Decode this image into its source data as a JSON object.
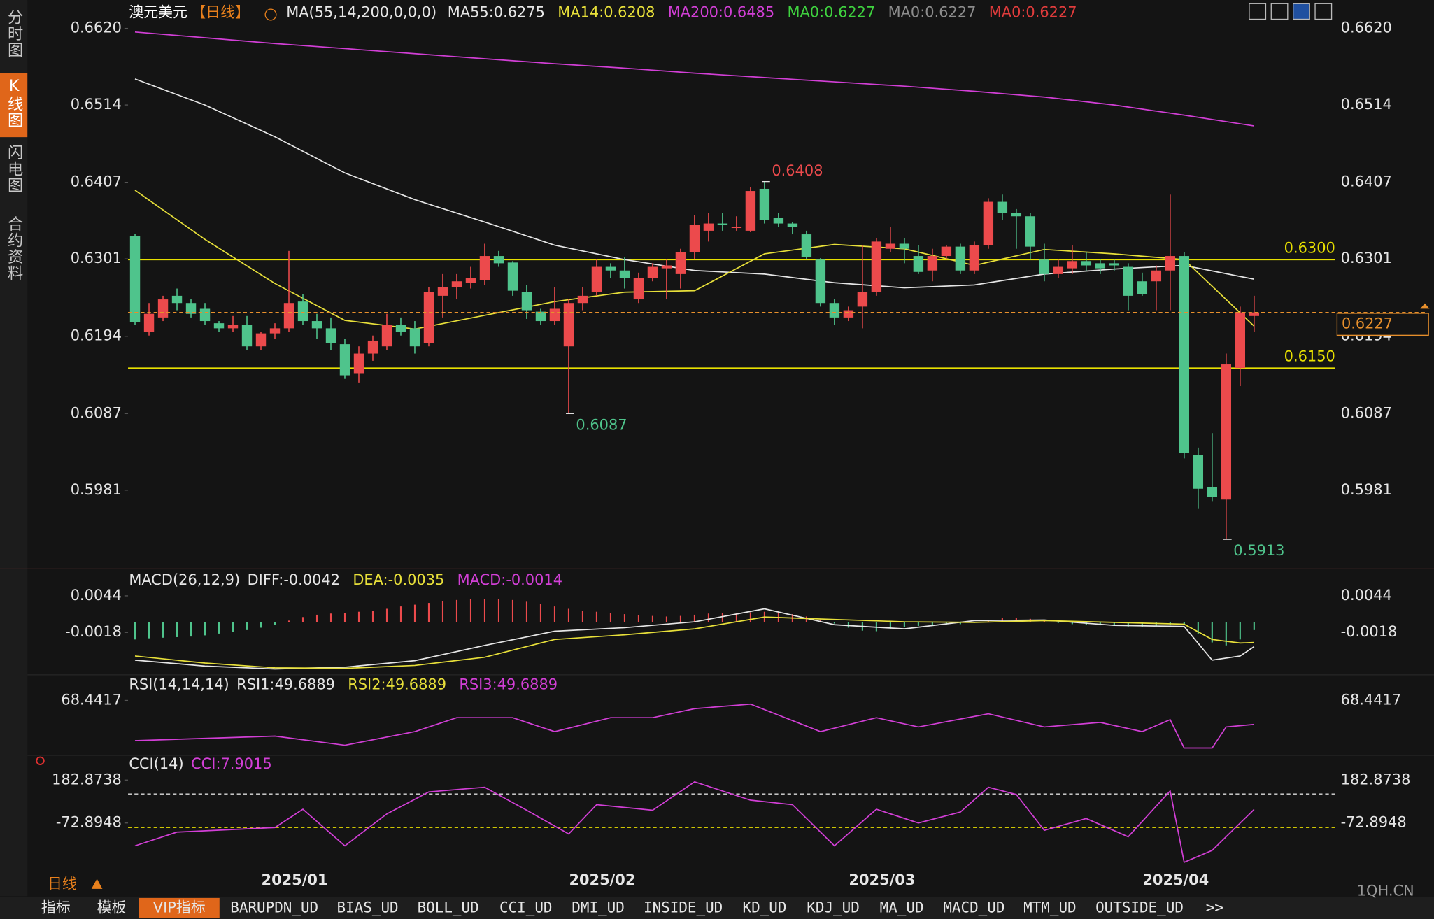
{
  "ui": {
    "sidebar": [
      "分时图",
      "K线图",
      "闪电图",
      "合约资料"
    ],
    "period": "日线",
    "bottom_tabs": [
      "指标",
      "模板",
      "VIP指标",
      "BARUPDN_UD",
      "BIAS_UD",
      "BOLL_UD",
      "CCI_UD",
      "DMI_UD",
      "INSIDE_UD",
      "KD_UD",
      "KDJ_UD",
      "MA_UD",
      "MACD_UD",
      "MTM_UD",
      "OUTSIDE_UD",
      ">>"
    ],
    "watermark": "1QH.CN"
  },
  "chart_data": [
    {
      "type": "candlestick",
      "title": "澳元美元",
      "period": "【日线】",
      "indicator": "MA(55,14,200,0,0,0)",
      "up_color": "#ec4a4c",
      "down_color": "#4fc48c",
      "xlim": [
        -0.5,
        85.8
      ],
      "xticks": [
        {
          "value": 11.4,
          "label": "2025/01"
        },
        {
          "value": 33.4,
          "label": "2025/02"
        },
        {
          "value": 53.4,
          "label": "2025/03"
        },
        {
          "value": 74.4,
          "label": "2025/04"
        }
      ],
      "ylim": [
        0.5865,
        0.666
      ],
      "yticks": [
        {
          "value": 0.662,
          "label": "0.6620"
        },
        0.6514,
        0.6407,
        0.6301,
        0.6194,
        0.6087,
        0.5981
      ],
      "open": [
        0.6333,
        0.62,
        0.622,
        0.625,
        0.624,
        0.6232,
        0.6212,
        0.6205,
        0.621,
        0.618,
        0.6198,
        0.6205,
        0.6242,
        0.6215,
        0.6205,
        0.6183,
        0.6142,
        0.617,
        0.618,
        0.621,
        0.6205,
        0.6185,
        0.625,
        0.6262,
        0.6268,
        0.6272,
        0.6305,
        0.6296,
        0.6255,
        0.6228,
        0.6215,
        0.618,
        0.624,
        0.6255,
        0.629,
        0.6285,
        0.6245,
        0.6275,
        0.6288,
        0.628,
        0.631,
        0.634,
        0.635,
        0.6345,
        0.634,
        0.6398,
        0.6358,
        0.635,
        0.6335,
        0.63,
        0.624,
        0.622,
        0.6235,
        0.6255,
        0.6315,
        0.6322,
        0.6305,
        0.6285,
        0.6305,
        0.6318,
        0.6285,
        0.632,
        0.638,
        0.6365,
        0.636,
        0.63,
        0.628,
        0.6288,
        0.6298,
        0.6295,
        0.6295,
        0.629,
        0.627,
        0.627,
        0.6285,
        0.6305,
        0.603,
        0.5985,
        0.5968,
        0.615,
        0.6222
      ],
      "high": [
        0.6335,
        0.624,
        0.625,
        0.626,
        0.6245,
        0.624,
        0.6215,
        0.6222,
        0.6222,
        0.62,
        0.6212,
        0.6312,
        0.6252,
        0.6225,
        0.622,
        0.619,
        0.618,
        0.6195,
        0.6225,
        0.622,
        0.6215,
        0.6262,
        0.628,
        0.628,
        0.629,
        0.6322,
        0.6312,
        0.6298,
        0.6265,
        0.6232,
        0.6262,
        0.6245,
        0.6262,
        0.63,
        0.6295,
        0.6303,
        0.6282,
        0.6295,
        0.63,
        0.6315,
        0.6362,
        0.6365,
        0.6365,
        0.636,
        0.64,
        0.6408,
        0.6365,
        0.6352,
        0.634,
        0.6302,
        0.6245,
        0.6235,
        0.632,
        0.633,
        0.6345,
        0.633,
        0.632,
        0.6315,
        0.632,
        0.6322,
        0.6325,
        0.6385,
        0.639,
        0.637,
        0.6365,
        0.6322,
        0.63,
        0.632,
        0.631,
        0.63,
        0.63,
        0.6295,
        0.6282,
        0.6292,
        0.639,
        0.631,
        0.604,
        0.606,
        0.617,
        0.6235,
        0.625
      ],
      "low": [
        0.621,
        0.6195,
        0.6215,
        0.623,
        0.622,
        0.621,
        0.62,
        0.62,
        0.6175,
        0.6175,
        0.619,
        0.62,
        0.621,
        0.619,
        0.6175,
        0.6135,
        0.613,
        0.616,
        0.6175,
        0.6195,
        0.617,
        0.618,
        0.622,
        0.6245,
        0.626,
        0.6265,
        0.629,
        0.625,
        0.6218,
        0.621,
        0.621,
        0.6087,
        0.623,
        0.625,
        0.6275,
        0.626,
        0.624,
        0.627,
        0.6245,
        0.626,
        0.63,
        0.6325,
        0.634,
        0.634,
        0.6338,
        0.635,
        0.6345,
        0.6335,
        0.63,
        0.6235,
        0.621,
        0.6215,
        0.6205,
        0.625,
        0.631,
        0.6295,
        0.628,
        0.627,
        0.63,
        0.628,
        0.628,
        0.6315,
        0.6355,
        0.6315,
        0.63,
        0.627,
        0.6275,
        0.628,
        0.6285,
        0.628,
        0.6285,
        0.623,
        0.625,
        0.623,
        0.623,
        0.6025,
        0.5955,
        0.5965,
        0.5913,
        0.6125,
        0.62
      ],
      "close": [
        0.6214,
        0.6225,
        0.6245,
        0.624,
        0.6225,
        0.6215,
        0.6205,
        0.621,
        0.618,
        0.6198,
        0.6205,
        0.624,
        0.6215,
        0.6205,
        0.6185,
        0.614,
        0.617,
        0.6188,
        0.621,
        0.62,
        0.618,
        0.6255,
        0.6262,
        0.627,
        0.6275,
        0.6305,
        0.6295,
        0.6257,
        0.623,
        0.6215,
        0.6232,
        0.624,
        0.625,
        0.629,
        0.6285,
        0.6275,
        0.6275,
        0.629,
        0.6292,
        0.631,
        0.6348,
        0.635,
        0.6348,
        0.6345,
        0.6395,
        0.6355,
        0.635,
        0.6345,
        0.6304,
        0.624,
        0.622,
        0.623,
        0.6255,
        0.6325,
        0.6322,
        0.6315,
        0.6283,
        0.6305,
        0.6318,
        0.6285,
        0.632,
        0.638,
        0.6365,
        0.636,
        0.6318,
        0.628,
        0.629,
        0.6298,
        0.6292,
        0.6288,
        0.6292,
        0.625,
        0.6252,
        0.6285,
        0.6305,
        0.6033,
        0.5983,
        0.5972,
        0.6155,
        0.6227,
        0.6227
      ],
      "series": [
        {
          "name": "MA55:0.6275",
          "color": "#e6e6e6",
          "x": [
            0,
            5,
            10,
            15,
            20,
            25,
            30,
            35,
            40,
            45,
            50,
            55,
            60,
            65,
            70,
            75,
            80
          ],
          "values": [
            0.655,
            0.6514,
            0.647,
            0.642,
            0.6383,
            0.6352,
            0.632,
            0.63,
            0.6285,
            0.628,
            0.6268,
            0.6261,
            0.6265,
            0.628,
            0.6287,
            0.6292,
            0.6273
          ]
        },
        {
          "name": "MA14:0.6208",
          "color": "#e8e03a",
          "x": [
            0,
            5,
            10,
            15,
            20,
            25,
            30,
            35,
            40,
            45,
            50,
            55,
            60,
            65,
            70,
            75,
            80
          ],
          "values": [
            0.6396,
            0.6328,
            0.6267,
            0.6216,
            0.6204,
            0.6223,
            0.6242,
            0.6255,
            0.6257,
            0.6308,
            0.6321,
            0.6315,
            0.6292,
            0.6314,
            0.6308,
            0.63,
            0.6208
          ]
        },
        {
          "name": "MA200:0.6485",
          "color": "#d23fd6",
          "x": [
            0,
            5,
            10,
            15,
            20,
            25,
            30,
            35,
            40,
            45,
            50,
            55,
            60,
            65,
            70,
            75,
            80
          ],
          "values": [
            0.6615,
            0.6607,
            0.6599,
            0.6592,
            0.6585,
            0.6578,
            0.6571,
            0.6565,
            0.6558,
            0.6552,
            0.6546,
            0.654,
            0.6533,
            0.6525,
            0.6514,
            0.65,
            0.6485
          ]
        }
      ],
      "extra_legend": [
        {
          "name": "MA0:0.6227",
          "color": "#3fd23f"
        },
        {
          "name": "MA0:0.6227",
          "color": "#8c8c8c"
        },
        {
          "name": "MA0:0.6227",
          "color": "#e03c3c"
        }
      ],
      "hlines": [
        {
          "value": 0.63,
          "label": "0.6300",
          "color": "#e8e000"
        },
        {
          "value": 0.615,
          "label": "0.6150",
          "color": "#e8e000"
        }
      ],
      "last_price": {
        "value": 0.6227,
        "label": "0.6227",
        "color": "#e8902c"
      },
      "annotations": [
        {
          "x": 45,
          "value": 0.6408,
          "color": "#ec4a4c"
        },
        {
          "x": 31,
          "value": 0.6087,
          "color": "#4fc48c"
        },
        {
          "x": 78,
          "value": 0.5913,
          "color": "#4fc48c"
        }
      ]
    },
    {
      "type": "macd",
      "title": "MACD(26,12,9)",
      "ylim": [
        -0.0085,
        0.0062
      ],
      "yticks": [
        0.0044,
        -0.0018
      ],
      "series": [
        {
          "name": "DIFF:-0.0042",
          "color": "#e6e6e6",
          "x": [
            0,
            5,
            10,
            15,
            20,
            25,
            30,
            35,
            40,
            45,
            50,
            55,
            60,
            65,
            70,
            75,
            77,
            79,
            80
          ],
          "values": [
            -0.0065,
            -0.0075,
            -0.008,
            -0.0077,
            -0.0066,
            -0.004,
            -0.0016,
            -0.001,
            0,
            0.0022,
            -0.0005,
            -0.0012,
            0.0002,
            0.0003,
            -0.0006,
            -0.0008,
            -0.0065,
            -0.0058,
            -0.0042
          ]
        },
        {
          "name": "DEA:-0.0035",
          "color": "#e8e03a",
          "x": [
            0,
            5,
            10,
            15,
            20,
            25,
            30,
            35,
            40,
            45,
            50,
            55,
            60,
            65,
            70,
            75,
            77,
            79,
            80
          ],
          "values": [
            -0.0058,
            -0.007,
            -0.0078,
            -0.0079,
            -0.0074,
            -0.006,
            -0.003,
            -0.0022,
            -0.0012,
            0.0008,
            0.0004,
            0,
            -0.0001,
            0.0002,
            -0.0001,
            -0.0004,
            -0.003,
            -0.0036,
            -0.0035
          ]
        }
      ],
      "histogram": {
        "name": "MACD:-0.0014",
        "color": "#d23fd6",
        "up_color": "#ec4a4c",
        "down_color": "#4fc48c",
        "values": [
          -0.003,
          -0.0028,
          -0.0027,
          -0.0026,
          -0.0025,
          -0.0023,
          -0.002,
          -0.0017,
          -0.0014,
          -0.001,
          -0.0005,
          0.0002,
          0.0008,
          0.0012,
          0.0014,
          0.0015,
          0.0017,
          0.0019,
          0.0022,
          0.0026,
          0.0029,
          0.0032,
          0.0035,
          0.0037,
          0.0038,
          0.0038,
          0.0039,
          0.0037,
          0.0034,
          0.003,
          0.0026,
          0.0022,
          0.0019,
          0.0017,
          0.0015,
          0.0013,
          0.0011,
          0.001,
          0.0009,
          0.001,
          0.0012,
          0.0014,
          0.0015,
          0.0015,
          0.0016,
          0.0017,
          0.0016,
          0.0013,
          0.0009,
          0.0004,
          -0.0003,
          -0.001,
          -0.0015,
          -0.0016,
          -0.0012,
          -0.0009,
          -0.0007,
          -0.0006,
          -0.0005,
          -0.0004,
          -0.0002,
          0.0002,
          0.0006,
          0.0007,
          0.0005,
          0.0002,
          -0.0002,
          -0.0004,
          -0.0005,
          -0.0006,
          -0.0007,
          -0.0008,
          -0.0009,
          -0.0008,
          -0.0006,
          -0.0005,
          -0.002,
          -0.0035,
          -0.004,
          -0.003,
          -0.0014
        ]
      }
    },
    {
      "type": "line",
      "title": "RSI(14,14,14)",
      "ylim": [
        28,
        76
      ],
      "yticks": [
        68.4417
      ],
      "series": [
        {
          "name": "RSI1:49.6889",
          "color": "#e6e6e6"
        },
        {
          "name": "RSI2:49.6889",
          "color": "#e8e03a"
        },
        {
          "name": "RSI3:49.6889",
          "color": "#d23fd6",
          "x": [
            0,
            10,
            15,
            20,
            23,
            27,
            30,
            34,
            37,
            40,
            44,
            49,
            53,
            56,
            61,
            65,
            69,
            72,
            74,
            75,
            77,
            78,
            80
          ],
          "values": [
            37,
            40.6,
            33.4,
            44.1,
            54.9,
            54.9,
            44.1,
            54.9,
            54.9,
            62,
            65.6,
            44.1,
            54.9,
            47.7,
            58,
            47.7,
            51.3,
            44.1,
            53.4,
            31.3,
            31.3,
            47.7,
            49.6889
          ]
        }
      ]
    },
    {
      "type": "line",
      "title": "CCI(14)",
      "ylim": [
        -340,
        300
      ],
      "yticks": [
        182.8738,
        -72.8948
      ],
      "levels": [
        {
          "value": 100,
          "color": "#dddddd"
        },
        {
          "value": -100,
          "color": "#e8e000"
        }
      ],
      "series": [
        {
          "name": "CCI:7.9015",
          "color": "#d23fd6",
          "x": [
            0,
            3,
            10,
            12,
            15,
            18,
            21,
            25,
            28,
            31,
            33,
            37,
            40,
            44,
            47,
            50,
            53,
            56,
            59,
            61,
            63,
            65,
            68,
            71,
            74,
            75,
            77,
            80
          ],
          "values": [
            -209,
            -127,
            -100,
            9,
            -209,
            -19,
            112,
            140,
            3,
            -138,
            36,
            3,
            172,
            63,
            36,
            -209,
            9,
            -73,
            -8,
            140,
            97,
            -117,
            -46,
            -155,
            118,
            -307,
            -236,
            7.9015
          ]
        }
      ]
    }
  ]
}
